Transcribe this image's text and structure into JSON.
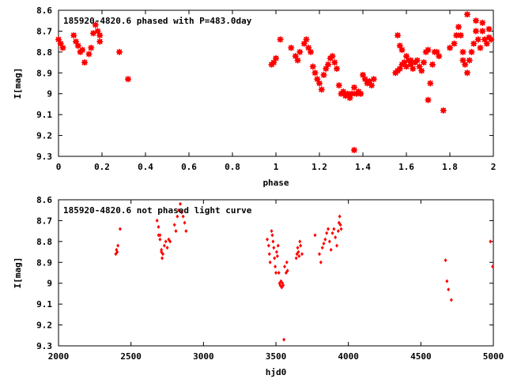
{
  "chart_data": [
    {
      "type": "scatter",
      "title": "185920-4820.6 phased with P=483.0day",
      "xlabel": "phase",
      "ylabel": "I[mag]",
      "xlim": [
        0,
        2
      ],
      "ylim": [
        9.3,
        8.6
      ],
      "y_inverted": true,
      "xticks": [
        "0",
        "0.2",
        "0.4",
        "0.6",
        "0.8",
        "1",
        "1.2",
        "1.4",
        "1.6",
        "1.8",
        "2"
      ],
      "yticks": [
        "8.6",
        "8.7",
        "8.8",
        "8.9",
        "9",
        "9.1",
        "9.2",
        "9.3"
      ],
      "grid": false,
      "marker_color": "#ff0000",
      "series": [
        {
          "points": [
            [
              0.0,
              8.74
            ],
            [
              0.01,
              8.76
            ],
            [
              0.02,
              8.78
            ],
            [
              0.07,
              8.72
            ],
            [
              0.08,
              8.75
            ],
            [
              0.09,
              8.77
            ],
            [
              0.1,
              8.8
            ],
            [
              0.11,
              8.79
            ],
            [
              0.12,
              8.85
            ],
            [
              0.14,
              8.81
            ],
            [
              0.15,
              8.78
            ],
            [
              0.16,
              8.71
            ],
            [
              0.17,
              8.67
            ],
            [
              0.18,
              8.7
            ],
            [
              0.19,
              8.72
            ],
            [
              0.19,
              8.75
            ],
            [
              0.28,
              8.8
            ],
            [
              0.32,
              8.93
            ],
            [
              0.98,
              8.86
            ],
            [
              0.99,
              8.85
            ],
            [
              1.0,
              8.83
            ],
            [
              1.02,
              8.74
            ],
            [
              1.07,
              8.78
            ],
            [
              1.09,
              8.82
            ],
            [
              1.1,
              8.84
            ],
            [
              1.11,
              8.8
            ],
            [
              1.13,
              8.76
            ],
            [
              1.14,
              8.74
            ],
            [
              1.15,
              8.78
            ],
            [
              1.16,
              8.8
            ],
            [
              1.17,
              8.87
            ],
            [
              1.18,
              8.9
            ],
            [
              1.19,
              8.93
            ],
            [
              1.2,
              8.95
            ],
            [
              1.21,
              8.98
            ],
            [
              1.22,
              8.91
            ],
            [
              1.23,
              8.88
            ],
            [
              1.24,
              8.86
            ],
            [
              1.25,
              8.83
            ],
            [
              1.26,
              8.82
            ],
            [
              1.27,
              8.85
            ],
            [
              1.28,
              8.88
            ],
            [
              1.29,
              8.96
            ],
            [
              1.3,
              9.0
            ],
            [
              1.31,
              8.99
            ],
            [
              1.32,
              9.01
            ],
            [
              1.33,
              9.0
            ],
            [
              1.34,
              9.02
            ],
            [
              1.35,
              9.0
            ],
            [
              1.36,
              8.97
            ],
            [
              1.37,
              9.0
            ],
            [
              1.38,
              8.99
            ],
            [
              1.39,
              9.0
            ],
            [
              1.36,
              9.27
            ],
            [
              1.4,
              8.91
            ],
            [
              1.41,
              8.93
            ],
            [
              1.42,
              8.95
            ],
            [
              1.43,
              8.94
            ],
            [
              1.44,
              8.96
            ],
            [
              1.45,
              8.93
            ],
            [
              1.55,
              8.9
            ],
            [
              1.56,
              8.89
            ],
            [
              1.57,
              8.88
            ],
            [
              1.58,
              8.86
            ],
            [
              1.59,
              8.85
            ],
            [
              1.6,
              8.87
            ],
            [
              1.61,
              8.84
            ],
            [
              1.62,
              8.86
            ],
            [
              1.63,
              8.88
            ],
            [
              1.64,
              8.85
            ],
            [
              1.65,
              8.84
            ],
            [
              1.66,
              8.87
            ],
            [
              1.67,
              8.89
            ],
            [
              1.68,
              8.85
            ],
            [
              1.69,
              8.8
            ],
            [
              1.7,
              8.79
            ],
            [
              1.71,
              8.95
            ],
            [
              1.7,
              9.03
            ],
            [
              1.72,
              8.86
            ],
            [
              1.73,
              8.8
            ],
            [
              1.74,
              8.8
            ],
            [
              1.75,
              8.82
            ],
            [
              1.77,
              9.08
            ],
            [
              1.8,
              8.78
            ],
            [
              1.82,
              8.76
            ],
            [
              1.83,
              8.72
            ],
            [
              1.84,
              8.68
            ],
            [
              1.85,
              8.72
            ],
            [
              1.86,
              8.8
            ],
            [
              1.87,
              8.86
            ],
            [
              1.88,
              8.62
            ],
            [
              1.89,
              8.84
            ],
            [
              1.9,
              8.8
            ],
            [
              1.91,
              8.76
            ],
            [
              1.92,
              8.7
            ],
            [
              1.93,
              8.74
            ],
            [
              1.94,
              8.78
            ],
            [
              1.95,
              8.7
            ],
            [
              1.96,
              8.74
            ],
            [
              1.97,
              8.76
            ],
            [
              1.98,
              8.73
            ],
            [
              1.99,
              8.74
            ],
            [
              1.56,
              8.72
            ],
            [
              1.57,
              8.77
            ],
            [
              1.58,
              8.79
            ],
            [
              1.6,
              8.82
            ],
            [
              1.62,
              8.84
            ],
            [
              1.92,
              8.65
            ],
            [
              1.95,
              8.66
            ],
            [
              1.98,
              8.69
            ],
            [
              1.88,
              8.9
            ],
            [
              1.86,
              8.84
            ]
          ]
        }
      ]
    },
    {
      "type": "scatter",
      "title": "185920-4820.6 not phased light curve",
      "xlabel": "hjd0",
      "ylabel": "I[mag]",
      "xlim": [
        2000,
        5000
      ],
      "ylim": [
        9.3,
        8.6
      ],
      "y_inverted": true,
      "xticks": [
        "2000",
        "2500",
        "3000",
        "3500",
        "4000",
        "4500",
        "5000"
      ],
      "yticks": [
        "8.6",
        "8.7",
        "8.8",
        "8.9",
        "9",
        "9.1",
        "9.2",
        "9.3"
      ],
      "grid": false,
      "marker_color": "#ff0000",
      "series": [
        {
          "points": [
            [
              2395,
              8.86
            ],
            [
              2400,
              8.84
            ],
            [
              2405,
              8.85
            ],
            [
              2410,
              8.82
            ],
            [
              2425,
              8.74
            ],
            [
              2680,
              8.7
            ],
            [
              2690,
              8.73
            ],
            [
              2700,
              8.77
            ],
            [
              2710,
              8.84
            ],
            [
              2715,
              8.88
            ],
            [
              2720,
              8.86
            ],
            [
              2730,
              8.82
            ],
            [
              2740,
              8.8
            ],
            [
              2750,
              8.83
            ],
            [
              2760,
              8.79
            ],
            [
              2770,
              8.8
            ],
            [
              2800,
              8.72
            ],
            [
              2810,
              8.75
            ],
            [
              2820,
              8.68
            ],
            [
              2830,
              8.65
            ],
            [
              2840,
              8.62
            ],
            [
              2850,
              8.66
            ],
            [
              2860,
              8.68
            ],
            [
              2870,
              8.71
            ],
            [
              2880,
              8.75
            ],
            [
              2690,
              8.77
            ],
            [
              2700,
              8.79
            ],
            [
              2710,
              8.85
            ],
            [
              3440,
              8.79
            ],
            [
              3450,
              8.82
            ],
            [
              3455,
              8.86
            ],
            [
              3460,
              8.9
            ],
            [
              3470,
              8.75
            ],
            [
              3475,
              8.77
            ],
            [
              3480,
              8.8
            ],
            [
              3485,
              8.83
            ],
            [
              3490,
              8.88
            ],
            [
              3495,
              8.92
            ],
            [
              3500,
              8.95
            ],
            [
              3505,
              8.85
            ],
            [
              3510,
              8.87
            ],
            [
              3515,
              8.82
            ],
            [
              3520,
              8.95
            ],
            [
              3525,
              9.0
            ],
            [
              3530,
              9.01
            ],
            [
              3535,
              8.99
            ],
            [
              3540,
              9.02
            ],
            [
              3545,
              9.0
            ],
            [
              3550,
              9.01
            ],
            [
              3555,
              9.27
            ],
            [
              3560,
              8.92
            ],
            [
              3570,
              8.95
            ],
            [
              3575,
              8.9
            ],
            [
              3580,
              8.94
            ],
            [
              3640,
              8.88
            ],
            [
              3645,
              8.86
            ],
            [
              3650,
              8.83
            ],
            [
              3655,
              8.85
            ],
            [
              3660,
              8.87
            ],
            [
              3665,
              8.8
            ],
            [
              3670,
              8.82
            ],
            [
              3680,
              8.86
            ],
            [
              3770,
              8.77
            ],
            [
              3800,
              8.86
            ],
            [
              3810,
              8.9
            ],
            [
              3820,
              8.83
            ],
            [
              3830,
              8.81
            ],
            [
              3840,
              8.79
            ],
            [
              3850,
              8.76
            ],
            [
              3860,
              8.74
            ],
            [
              3870,
              8.8
            ],
            [
              3880,
              8.84
            ],
            [
              3890,
              8.76
            ],
            [
              3900,
              8.74
            ],
            [
              3910,
              8.78
            ],
            [
              3920,
              8.82
            ],
            [
              3930,
              8.75
            ],
            [
              3935,
              8.71
            ],
            [
              3940,
              8.68
            ],
            [
              3945,
              8.72
            ],
            [
              3950,
              8.74
            ],
            [
              4670,
              8.89
            ],
            [
              4680,
              8.99
            ],
            [
              4690,
              9.03
            ],
            [
              4710,
              9.08
            ],
            [
              4980,
              8.8
            ],
            [
              4995,
              8.92
            ]
          ]
        }
      ]
    }
  ]
}
